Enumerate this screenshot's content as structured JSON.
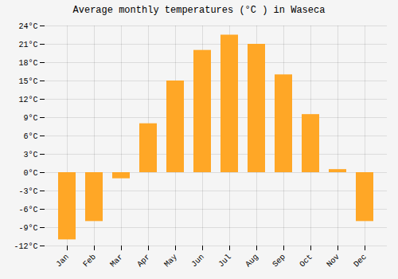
{
  "chart_data": {
    "type": "bar",
    "title": "Average monthly temperatures (°C ) in Waseca",
    "categories": [
      "Jan",
      "Feb",
      "Mar",
      "Apr",
      "May",
      "Jun",
      "Jul",
      "Aug",
      "Sep",
      "Oct",
      "Nov",
      "Dec"
    ],
    "values": [
      -11,
      -8,
      -1,
      8,
      15,
      20,
      22.5,
      21,
      16,
      9.5,
      0.5,
      -8
    ],
    "color": "#FFA726",
    "ylim": [
      -12,
      24
    ],
    "yticks": [
      {
        "value": -12,
        "label": "-12°C"
      },
      {
        "value": -9,
        "label": "-9°C"
      },
      {
        "value": -6,
        "label": "-6°C"
      },
      {
        "value": -3,
        "label": "-3°C"
      },
      {
        "value": 0,
        "label": "0°C"
      },
      {
        "value": 3,
        "label": "3°C"
      },
      {
        "value": 6,
        "label": "6°C"
      },
      {
        "value": 9,
        "label": "9°C"
      },
      {
        "value": 12,
        "label": "12°C"
      },
      {
        "value": 15,
        "label": "15°C"
      },
      {
        "value": 18,
        "label": "18°C"
      },
      {
        "value": 21,
        "label": "21°C"
      },
      {
        "value": 24,
        "label": "24°C"
      }
    ],
    "grid": true
  }
}
